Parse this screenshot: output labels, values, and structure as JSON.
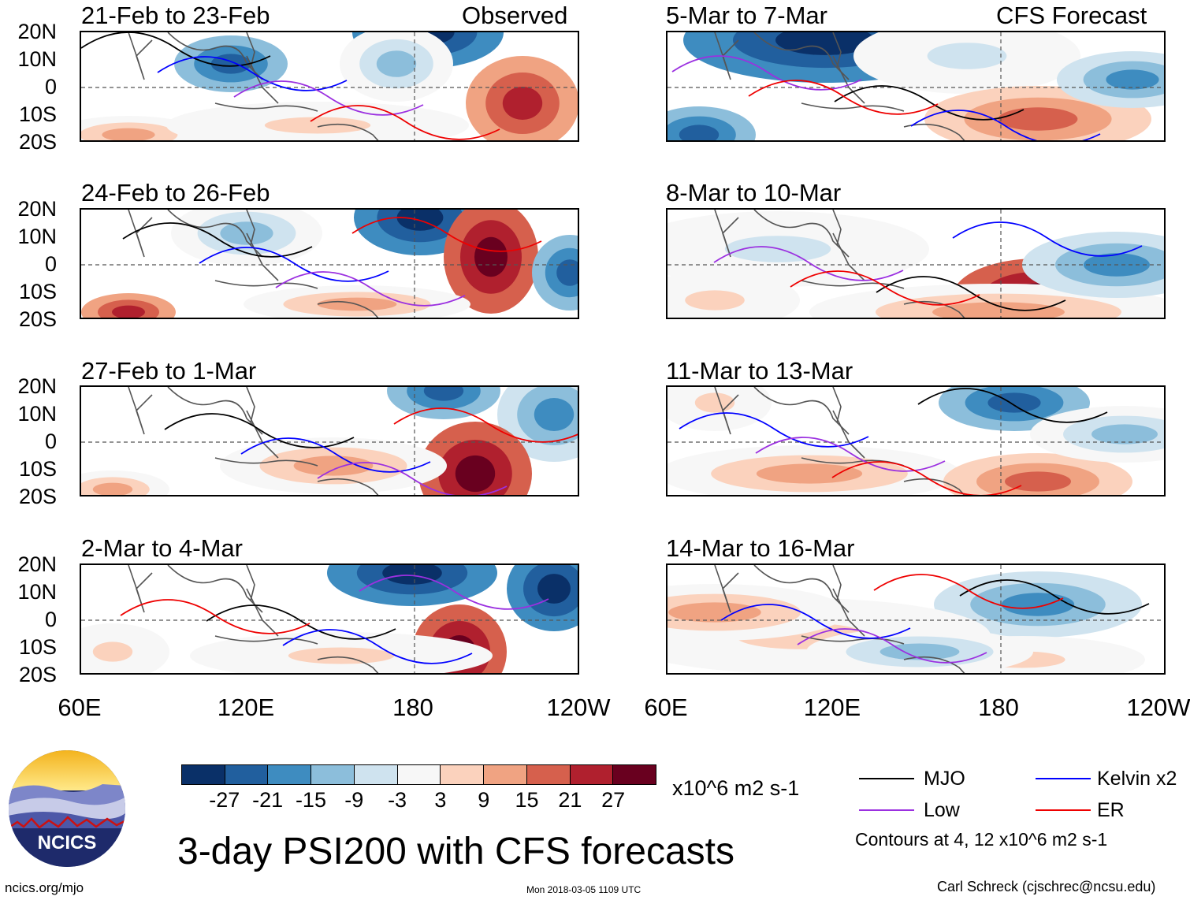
{
  "main_title": "3-day PSI200 with CFS forecasts",
  "column_tags": {
    "observed": "Observed",
    "forecast": "CFS Forecast"
  },
  "lat_labels": [
    "20N",
    "10N",
    "0",
    "10S",
    "20S"
  ],
  "lon_labels": [
    "60E",
    "120E",
    "180",
    "120W"
  ],
  "panels": [
    {
      "title": "21-Feb to 23-Feb",
      "column": "observed"
    },
    {
      "title": "24-Feb to 26-Feb",
      "column": "observed"
    },
    {
      "title": "27-Feb to 1-Mar",
      "column": "observed"
    },
    {
      "title": "2-Mar to 4-Mar",
      "column": "observed"
    },
    {
      "title": "5-Mar to 7-Mar",
      "column": "forecast"
    },
    {
      "title": "8-Mar to 10-Mar",
      "column": "forecast"
    },
    {
      "title": "11-Mar to 13-Mar",
      "column": "forecast"
    },
    {
      "title": "14-Mar to 16-Mar",
      "column": "forecast"
    }
  ],
  "colorbar": {
    "colors": [
      "#0a3068",
      "#215f9e",
      "#3e8cc0",
      "#8cbedb",
      "#cfe3ef",
      "#f7f7f7",
      "#fbd2bd",
      "#f0a382",
      "#d6604d",
      "#b0202e",
      "#69001f"
    ],
    "ticks": [
      "-27",
      "-21",
      "-15",
      "-9",
      "-3",
      "3",
      "9",
      "15",
      "21",
      "27"
    ],
    "units": "x10^6 m2 s-1"
  },
  "legend": [
    {
      "label": "MJO",
      "color": "#000000"
    },
    {
      "label": "Kelvin x2",
      "color": "#0000ff"
    },
    {
      "label": "Low",
      "color": "#9b30e0"
    },
    {
      "label": "ER",
      "color": "#ee0000"
    }
  ],
  "contours_note": "Contours at 4, 12 x10^6 m2 s-1",
  "logo_text": "NCICS",
  "footer": {
    "site": "ncics.org/mjo",
    "timestamp": "Mon 2018-03-05 1109 UTC",
    "author": "Carl Schreck (cjschrec@ncsu.edu)"
  }
}
